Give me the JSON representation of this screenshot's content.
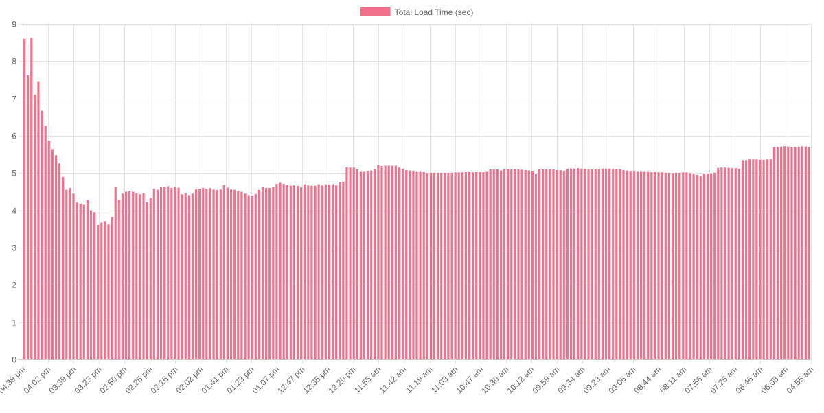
{
  "chart_data": {
    "type": "bar",
    "title": "",
    "xlabel": "",
    "ylabel": "",
    "ylim": [
      0,
      9
    ],
    "y_ticks": [
      0,
      1,
      2,
      3,
      4,
      5,
      6,
      7,
      8,
      9
    ],
    "grid": true,
    "legend_position": "top-center",
    "x_tick_labels": [
      "04:39 pm",
      "04:02 pm",
      "03:39 pm",
      "03:23 pm",
      "02:50 pm",
      "02:25 pm",
      "02:16 pm",
      "02:02 pm",
      "01:41 pm",
      "01:23 pm",
      "01:07 pm",
      "12:47 pm",
      "12:35 pm",
      "12:20 pm",
      "11:55 am",
      "11:42 am",
      "11:19 am",
      "11:03 am",
      "10:47 am",
      "10:30 am",
      "10:12 am",
      "09:59 am",
      "09:34 am",
      "09:23 am",
      "09:06 am",
      "08:44 am",
      "08:11 am",
      "07:56 am",
      "07:25 am",
      "06:46 am",
      "06:08 am",
      "04:55 am"
    ],
    "series": [
      {
        "name": "Total Load Time (sec)",
        "color": "#f0718b",
        "values": [
          8.6,
          7.62,
          8.62,
          7.1,
          7.46,
          6.67,
          6.27,
          5.87,
          5.64,
          5.48,
          5.26,
          4.9,
          4.55,
          4.6,
          4.45,
          4.21,
          4.18,
          4.15,
          4.28,
          4.0,
          3.95,
          3.61,
          3.67,
          3.71,
          3.62,
          3.82,
          4.64,
          4.28,
          4.45,
          4.5,
          4.51,
          4.5,
          4.46,
          4.43,
          4.46,
          4.22,
          4.33,
          4.58,
          4.55,
          4.63,
          4.64,
          4.65,
          4.6,
          4.62,
          4.61,
          4.43,
          4.46,
          4.41,
          4.45,
          4.56,
          4.58,
          4.6,
          4.58,
          4.6,
          4.56,
          4.55,
          4.56,
          4.68,
          4.61,
          4.56,
          4.55,
          4.52,
          4.5,
          4.45,
          4.41,
          4.4,
          4.44,
          4.55,
          4.62,
          4.6,
          4.6,
          4.63,
          4.71,
          4.74,
          4.71,
          4.68,
          4.66,
          4.67,
          4.66,
          4.62,
          4.7,
          4.67,
          4.66,
          4.66,
          4.7,
          4.67,
          4.7,
          4.69,
          4.7,
          4.67,
          4.75,
          4.77,
          5.16,
          5.15,
          5.15,
          5.1,
          5.05,
          5.05,
          5.06,
          5.07,
          5.1,
          5.21,
          5.19,
          5.2,
          5.2,
          5.2,
          5.2,
          5.15,
          5.12,
          5.08,
          5.07,
          5.06,
          5.05,
          5.05,
          5.04,
          5.0,
          5.01,
          5.01,
          5.01,
          5.01,
          5.01,
          5.01,
          5.01,
          5.02,
          5.02,
          5.02,
          5.04,
          5.04,
          5.02,
          5.04,
          5.03,
          5.03,
          5.05,
          5.1,
          5.1,
          5.1,
          5.07,
          5.11,
          5.1,
          5.1,
          5.1,
          5.1,
          5.09,
          5.08,
          5.07,
          5.06,
          4.97,
          5.1,
          5.1,
          5.1,
          5.1,
          5.1,
          5.08,
          5.08,
          5.06,
          5.12,
          5.12,
          5.12,
          5.13,
          5.12,
          5.11,
          5.1,
          5.1,
          5.1,
          5.1,
          5.12,
          5.12,
          5.12,
          5.12,
          5.11,
          5.1,
          5.08,
          5.07,
          5.06,
          5.06,
          5.05,
          5.05,
          5.05,
          5.05,
          5.04,
          5.03,
          5.02,
          5.02,
          5.01,
          5.01,
          5.0,
          5.01,
          5.01,
          5.02,
          5.02,
          5.0,
          4.98,
          4.95,
          4.92,
          4.98,
          4.98,
          4.99,
          5.01,
          5.14,
          5.15,
          5.15,
          5.14,
          5.13,
          5.13,
          5.12,
          5.35,
          5.35,
          5.37,
          5.37,
          5.37,
          5.36,
          5.36,
          5.37,
          5.37,
          5.7,
          5.7,
          5.71,
          5.72,
          5.71,
          5.7,
          5.7,
          5.71,
          5.72,
          5.71,
          5.7
        ]
      }
    ]
  }
}
